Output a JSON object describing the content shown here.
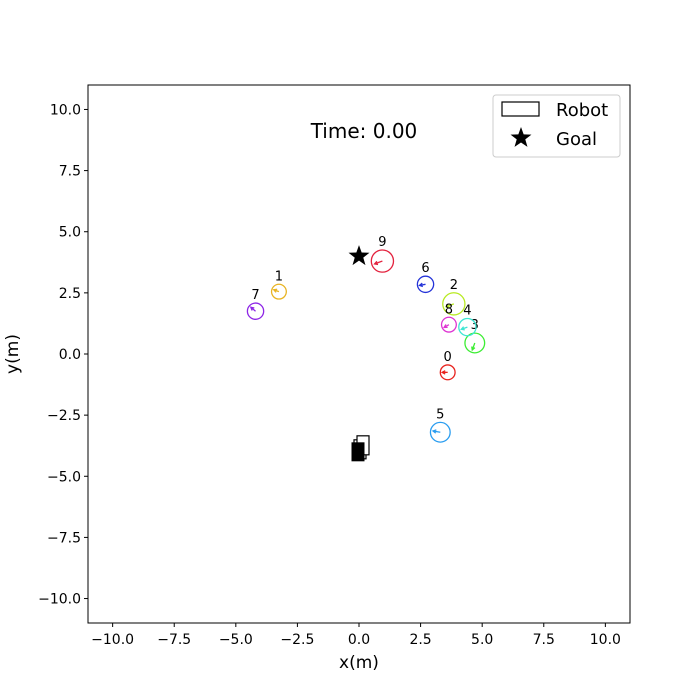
{
  "chart_data": {
    "type": "scatter",
    "title": "",
    "xlabel": "x(m)",
    "ylabel": "y(m)",
    "xlim": [
      -11,
      11
    ],
    "ylim": [
      -11,
      11
    ],
    "grid": false,
    "xticks": [
      -10.0,
      -7.5,
      -5.0,
      -2.5,
      0.0,
      2.5,
      5.0,
      7.5,
      10.0
    ],
    "xtick_labels": [
      "−10.0",
      "−7.5",
      "−5.0",
      "−2.5",
      "0.0",
      "2.5",
      "5.0",
      "7.5",
      "10.0"
    ],
    "yticks": [
      10.0,
      7.5,
      5.0,
      2.5,
      0.0,
      -2.5,
      -5.0,
      -7.5,
      -10.0
    ],
    "ytick_labels": [
      "10.0",
      "7.5",
      "5.0",
      "2.5",
      "0.0",
      "−2.5",
      "−5.0",
      "−7.5",
      "−10.0"
    ],
    "annotation": "Time: 0.00",
    "legend": {
      "position": "top-right",
      "entries": [
        {
          "label": "Robot",
          "marker": "rectangle"
        },
        {
          "label": "Goal",
          "marker": "star"
        }
      ]
    },
    "goal": {
      "x": 0.0,
      "y": 4.0
    },
    "robot": {
      "x": 0.0,
      "y": -4.0,
      "heading_deg": 90
    },
    "humans": [
      {
        "label": "0",
        "x": 3.6,
        "y": -0.75,
        "radius": 0.3,
        "color": "#e8231e",
        "heading_deg": 180
      },
      {
        "label": "1",
        "x": -3.25,
        "y": 2.55,
        "radius": 0.3,
        "color": "#e8b423",
        "heading_deg": 160
      },
      {
        "label": "2",
        "x": 3.85,
        "y": 2.05,
        "radius": 0.45,
        "color": "#b8ea22",
        "heading_deg": 200
      },
      {
        "label": "3",
        "x": 4.7,
        "y": 0.45,
        "radius": 0.4,
        "color": "#3ced33",
        "heading_deg": 250
      },
      {
        "label": "4",
        "x": 4.4,
        "y": 1.1,
        "radius": 0.35,
        "color": "#3ee6d3",
        "heading_deg": 200
      },
      {
        "label": "5",
        "x": 3.3,
        "y": -3.2,
        "radius": 0.4,
        "color": "#2a9df0",
        "heading_deg": 170
      },
      {
        "label": "6",
        "x": 2.7,
        "y": 2.85,
        "radius": 0.33,
        "color": "#2433d8",
        "heading_deg": 190
      },
      {
        "label": "7",
        "x": -4.2,
        "y": 1.75,
        "radius": 0.33,
        "color": "#8e26e6",
        "heading_deg": 140
      },
      {
        "label": "8",
        "x": 3.65,
        "y": 1.2,
        "radius": 0.3,
        "color": "#de34d3",
        "heading_deg": 210
      },
      {
        "label": "9",
        "x": 0.95,
        "y": 3.8,
        "radius": 0.45,
        "color": "#e3223e",
        "heading_deg": 200
      }
    ]
  }
}
